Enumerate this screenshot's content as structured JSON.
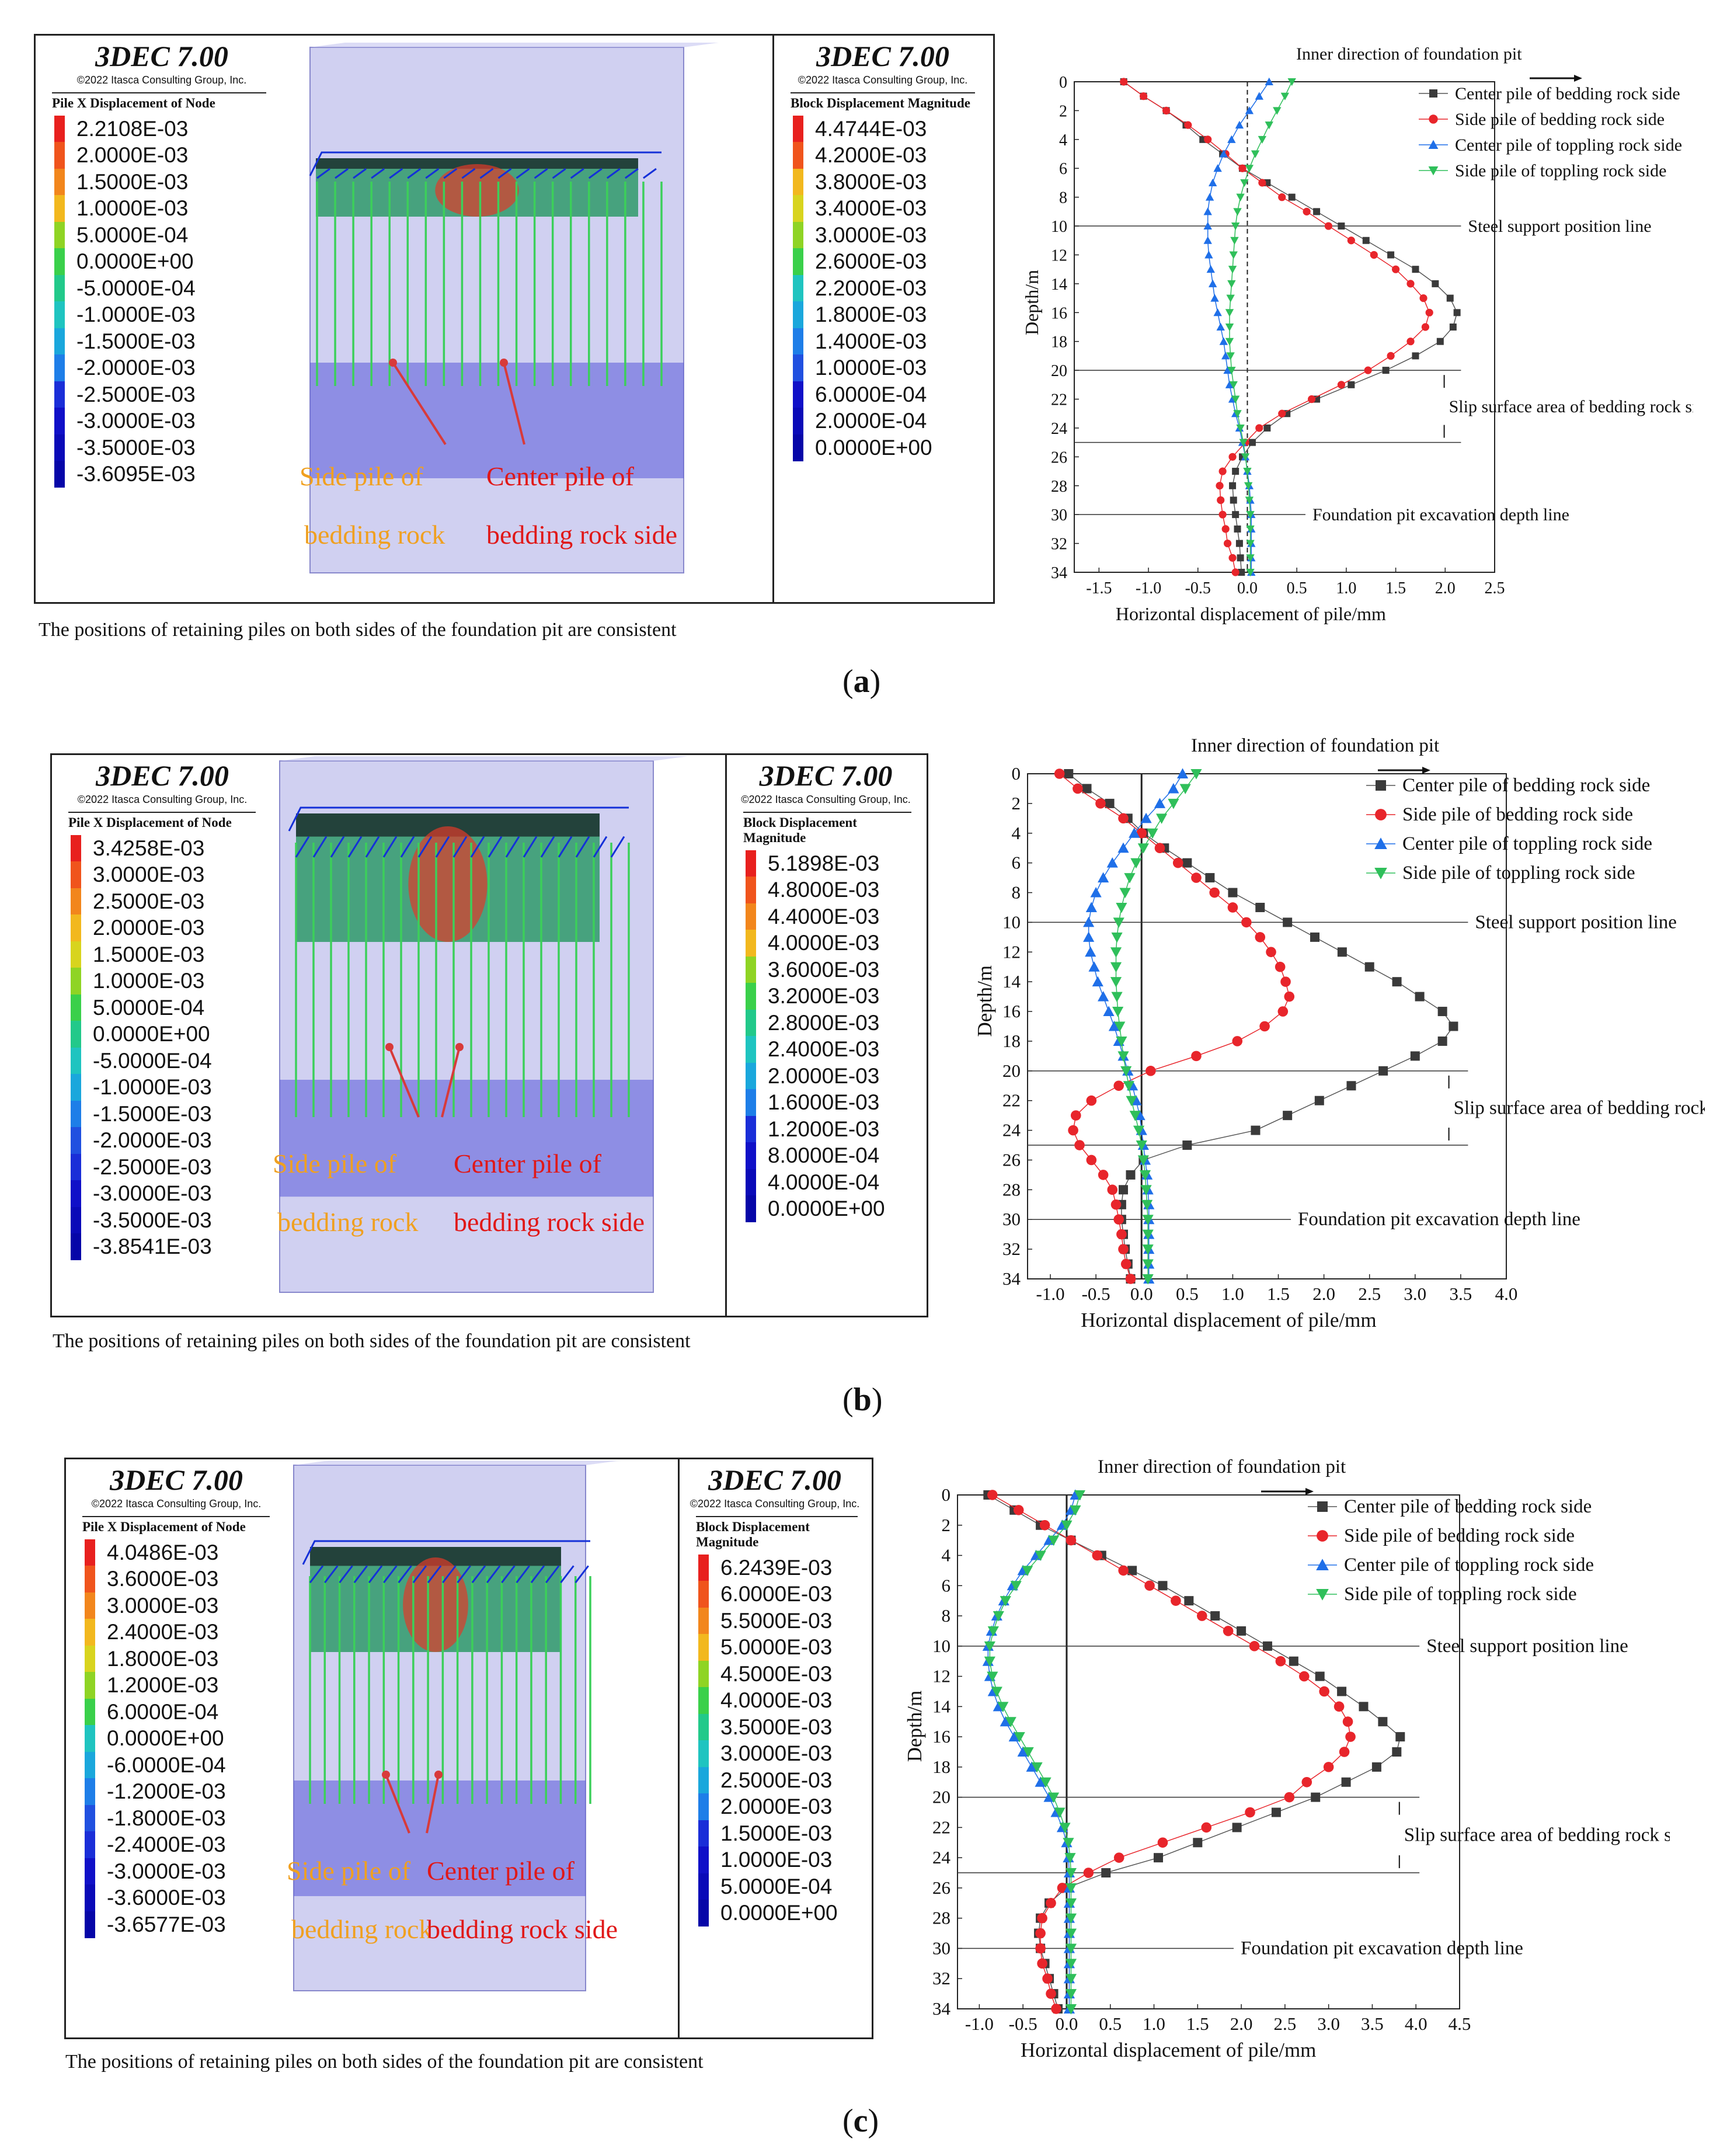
{
  "caption_common": "The positions of retaining piles on both sides of the foundation pit are consistent",
  "software": "3DEC 7.00",
  "copyright": "©2022 Itasca Consulting Group, Inc.",
  "panels": [
    {
      "label_open": "(",
      "label_letter": "a",
      "label_close": ")",
      "pile_legend_title": "Pile X Displacement of Node",
      "pile_legend": [
        "2.2108E-03",
        "2.0000E-03",
        "1.5000E-03",
        "1.0000E-03",
        "5.0000E-04",
        "0.0000E+00",
        "-5.0000E-04",
        "-1.0000E-03",
        "-1.5000E-03",
        "-2.0000E-03",
        "-2.5000E-03",
        "-3.0000E-03",
        "-3.5000E-03",
        "-3.6095E-03"
      ],
      "block_legend_title": "Block  Displacement Magnitude",
      "block_legend": [
        "4.4744E-03",
        "4.2000E-03",
        "3.8000E-03",
        "3.4000E-03",
        "3.0000E-03",
        "2.6000E-03",
        "2.2000E-03",
        "1.8000E-03",
        "1.4000E-03",
        "1.0000E-03",
        "6.0000E-04",
        "2.0000E-04",
        "0.0000E+00"
      ],
      "side_pile_label_1": "Side pile of",
      "side_pile_label_2": "bedding rock",
      "center_pile_label_1": "Center pile of",
      "center_pile_label_2": "bedding rock side"
    },
    {
      "label_open": "(",
      "label_letter": "b",
      "label_close": ")",
      "pile_legend_title": "Pile X Displacement of Node",
      "pile_legend": [
        "3.4258E-03",
        "3.0000E-03",
        "2.5000E-03",
        "2.0000E-03",
        "1.5000E-03",
        "1.0000E-03",
        "5.0000E-04",
        "0.0000E+00",
        "-5.0000E-04",
        "-1.0000E-03",
        "-1.5000E-03",
        "-2.0000E-03",
        "-2.5000E-03",
        "-3.0000E-03",
        "-3.5000E-03",
        "-3.8541E-03"
      ],
      "block_legend_title": "Block  Displacement Magnitude",
      "block_legend": [
        "5.1898E-03",
        "4.8000E-03",
        "4.4000E-03",
        "4.0000E-03",
        "3.6000E-03",
        "3.2000E-03",
        "2.8000E-03",
        "2.4000E-03",
        "2.0000E-03",
        "1.6000E-03",
        "1.2000E-03",
        "8.0000E-04",
        "4.0000E-04",
        "0.0000E+00"
      ],
      "side_pile_label_1": "Side pile of",
      "side_pile_label_2": "bedding rock",
      "center_pile_label_1": "Center pile of",
      "center_pile_label_2": "bedding rock side"
    },
    {
      "label_open": "(",
      "label_letter": "c",
      "label_close": ")",
      "pile_legend_title": "Pile X Displacement of Node",
      "pile_legend": [
        "4.0486E-03",
        "3.6000E-03",
        "3.0000E-03",
        "2.4000E-03",
        "1.8000E-03",
        "1.2000E-03",
        "6.0000E-04",
        "0.0000E+00",
        "-6.0000E-04",
        "-1.2000E-03",
        "-1.8000E-03",
        "-2.4000E-03",
        "-3.0000E-03",
        "-3.6000E-03",
        "-3.6577E-03"
      ],
      "block_legend_title": "Block  Displacement Magnitude",
      "block_legend": [
        "6.2439E-03",
        "6.0000E-03",
        "5.5000E-03",
        "5.0000E-03",
        "4.5000E-03",
        "4.0000E-03",
        "3.5000E-03",
        "3.0000E-03",
        "2.5000E-03",
        "2.0000E-03",
        "1.5000E-03",
        "1.0000E-03",
        "5.0000E-04",
        "0.0000E+00"
      ],
      "side_pile_label_1": "Side pile of",
      "side_pile_label_2": "bedding rock",
      "center_pile_label_1": "Center pile of",
      "center_pile_label_2": "bedding rock side"
    }
  ],
  "colors": {
    "center_bedding": "#3a3a3a",
    "side_bedding": "#e8252b",
    "center_toppling": "#1f6fe8",
    "side_toppling": "#2fbf5a",
    "arrow_red": "#d83a3a",
    "label_orange": "#f0a020",
    "label_red": "#e01818"
  },
  "chart_data": [
    {
      "type": "line",
      "title": "Inner direction of foundation pit",
      "xlabel": "Horizontal displacement of pile/mm",
      "ylabel": "Depth/m",
      "xlim": [
        -1.75,
        2.5
      ],
      "ylim": [
        0,
        34
      ],
      "xticks": [
        "-1.5",
        "-1.0",
        "-0.5",
        "0.0",
        "0.5",
        "1.0",
        "1.5",
        "2.0",
        "2.5"
      ],
      "xtick_values": [
        -1.5,
        -1.0,
        -0.5,
        0.0,
        0.5,
        1.0,
        1.5,
        2.0,
        2.5
      ],
      "yticks": [
        "0",
        "2",
        "4",
        "6",
        "8",
        "10",
        "12",
        "14",
        "16",
        "18",
        "20",
        "22",
        "24",
        "26",
        "28",
        "30",
        "32",
        "34"
      ],
      "zero_line_dashed": true,
      "reference_lines": [
        {
          "depth": 10,
          "label": "Steel support position line"
        },
        {
          "depth": 20,
          "label": ""
        },
        {
          "depth": 25,
          "label": ""
        },
        {
          "depth": 30,
          "label": "Foundation pit excavation depth line"
        }
      ],
      "slip_label": "Slip surface area of bedding rock side",
      "slip_range": [
        20,
        25
      ],
      "depths": [
        0,
        1,
        2,
        3,
        4,
        5,
        6,
        7,
        8,
        9,
        10,
        11,
        12,
        13,
        14,
        15,
        16,
        17,
        18,
        19,
        20,
        21,
        22,
        23,
        24,
        25,
        26,
        27,
        28,
        29,
        30,
        31,
        32,
        33,
        34
      ],
      "series": [
        {
          "name": "Center pile of bedding rock side",
          "marker": "square",
          "values": [
            -1.25,
            -1.05,
            -0.82,
            -0.62,
            -0.45,
            -0.25,
            -0.05,
            0.2,
            0.45,
            0.7,
            0.95,
            1.2,
            1.45,
            1.7,
            1.9,
            2.05,
            2.12,
            2.08,
            1.95,
            1.7,
            1.4,
            1.05,
            0.7,
            0.4,
            0.2,
            0.05,
            -0.05,
            -0.12,
            -0.15,
            -0.14,
            -0.12,
            -0.1,
            -0.08,
            -0.07,
            -0.06
          ]
        },
        {
          "name": "Side pile of bedding rock side",
          "marker": "circle",
          "values": [
            -1.25,
            -1.05,
            -0.82,
            -0.6,
            -0.4,
            -0.22,
            -0.05,
            0.15,
            0.35,
            0.6,
            0.82,
            1.05,
            1.28,
            1.5,
            1.65,
            1.78,
            1.84,
            1.8,
            1.65,
            1.45,
            1.22,
            0.95,
            0.65,
            0.35,
            0.12,
            -0.02,
            -0.15,
            -0.25,
            -0.28,
            -0.27,
            -0.25,
            -0.22,
            -0.2,
            -0.15,
            -0.12
          ]
        },
        {
          "name": "Center pile of toppling rock side",
          "marker": "triangle-up",
          "values": [
            0.22,
            0.12,
            0.02,
            -0.08,
            -0.16,
            -0.24,
            -0.3,
            -0.35,
            -0.38,
            -0.4,
            -0.4,
            -0.4,
            -0.39,
            -0.37,
            -0.35,
            -0.33,
            -0.3,
            -0.27,
            -0.24,
            -0.22,
            -0.2,
            -0.18,
            -0.15,
            -0.12,
            -0.08,
            -0.05,
            -0.02,
            0.0,
            0.02,
            0.03,
            0.04,
            0.04,
            0.04,
            0.04,
            0.04
          ]
        },
        {
          "name": "Side pile of toppling rock side",
          "marker": "triangle-down",
          "values": [
            0.45,
            0.38,
            0.3,
            0.22,
            0.15,
            0.08,
            0.02,
            -0.03,
            -0.07,
            -0.1,
            -0.12,
            -0.13,
            -0.14,
            -0.15,
            -0.16,
            -0.17,
            -0.18,
            -0.18,
            -0.18,
            -0.17,
            -0.16,
            -0.14,
            -0.12,
            -0.1,
            -0.07,
            -0.04,
            -0.02,
            0.0,
            0.01,
            0.02,
            0.03,
            0.03,
            0.03,
            0.03,
            0.03
          ]
        }
      ]
    },
    {
      "type": "line",
      "title": "Inner direction of foundation pit",
      "xlabel": "Horizontal displacement of pile/mm",
      "ylabel": "Depth/m",
      "xlim": [
        -1.25,
        4.0
      ],
      "ylim": [
        0,
        34
      ],
      "xticks": [
        "-1.0",
        "-0.5",
        "0.0",
        "0.5",
        "1.0",
        "1.5",
        "2.0",
        "2.5",
        "3.0",
        "3.5",
        "4.0"
      ],
      "xtick_values": [
        -1.0,
        -0.5,
        0.0,
        0.5,
        1.0,
        1.5,
        2.0,
        2.5,
        3.0,
        3.5,
        4.0
      ],
      "yticks": [
        "0",
        "2",
        "4",
        "6",
        "8",
        "10",
        "12",
        "14",
        "16",
        "18",
        "20",
        "22",
        "24",
        "26",
        "28",
        "30",
        "32",
        "34"
      ],
      "zero_line_dashed": false,
      "reference_lines": [
        {
          "depth": 10,
          "label": "Steel support position line"
        },
        {
          "depth": 20,
          "label": ""
        },
        {
          "depth": 25,
          "label": ""
        },
        {
          "depth": 30,
          "label": "Foundation pit excavation depth line"
        }
      ],
      "slip_label": "Slip surface area of bedding rock side",
      "slip_range": [
        20,
        25
      ],
      "depths": [
        0,
        1,
        2,
        3,
        4,
        5,
        6,
        7,
        8,
        9,
        10,
        11,
        12,
        13,
        14,
        15,
        16,
        17,
        18,
        19,
        20,
        21,
        22,
        23,
        24,
        25,
        26,
        27,
        28,
        29,
        30,
        31,
        32,
        33,
        34
      ],
      "series": [
        {
          "name": "Center pile of bedding rock side",
          "marker": "square",
          "values": [
            -0.8,
            -0.6,
            -0.35,
            -0.15,
            0.02,
            0.25,
            0.5,
            0.75,
            1.0,
            1.3,
            1.6,
            1.9,
            2.2,
            2.5,
            2.8,
            3.05,
            3.3,
            3.42,
            3.3,
            3.0,
            2.65,
            2.3,
            1.95,
            1.6,
            1.25,
            0.5,
            0.02,
            -0.12,
            -0.2,
            -0.22,
            -0.22,
            -0.2,
            -0.18,
            -0.15,
            -0.12
          ]
        },
        {
          "name": "Side pile of bedding rock side",
          "marker": "circle",
          "values": [
            -0.9,
            -0.7,
            -0.45,
            -0.2,
            0.0,
            0.2,
            0.4,
            0.6,
            0.8,
            1.0,
            1.15,
            1.3,
            1.42,
            1.52,
            1.58,
            1.62,
            1.55,
            1.35,
            1.05,
            0.6,
            0.1,
            -0.25,
            -0.55,
            -0.72,
            -0.75,
            -0.68,
            -0.55,
            -0.42,
            -0.32,
            -0.28,
            -0.25,
            -0.22,
            -0.2,
            -0.17,
            -0.12
          ]
        },
        {
          "name": "Center pile of toppling rock side",
          "marker": "triangle-up",
          "values": [
            0.45,
            0.35,
            0.2,
            0.05,
            -0.08,
            -0.2,
            -0.32,
            -0.42,
            -0.5,
            -0.55,
            -0.58,
            -0.58,
            -0.56,
            -0.52,
            -0.48,
            -0.42,
            -0.36,
            -0.3,
            -0.25,
            -0.2,
            -0.15,
            -0.1,
            -0.06,
            -0.02,
            0.0,
            0.02,
            0.04,
            0.06,
            0.07,
            0.08,
            0.08,
            0.08,
            0.08,
            0.08,
            0.08
          ]
        },
        {
          "name": "Side pile of toppling rock side",
          "marker": "triangle-down",
          "values": [
            0.6,
            0.48,
            0.35,
            0.22,
            0.12,
            0.02,
            -0.06,
            -0.13,
            -0.18,
            -0.22,
            -0.25,
            -0.27,
            -0.28,
            -0.28,
            -0.28,
            -0.27,
            -0.26,
            -0.24,
            -0.22,
            -0.2,
            -0.17,
            -0.14,
            -0.11,
            -0.07,
            -0.03,
            0.0,
            0.02,
            0.04,
            0.05,
            0.06,
            0.07,
            0.07,
            0.07,
            0.07,
            0.07
          ]
        }
      ]
    },
    {
      "type": "line",
      "title": "Inner direction of foundation pit",
      "xlabel": "Horizontal displacement of pile/mm",
      "ylabel": "Depth/m",
      "xlim": [
        -1.25,
        4.5
      ],
      "ylim": [
        0,
        34
      ],
      "xticks": [
        "-1.0",
        "-0.5",
        "0.0",
        "0.5",
        "1.0",
        "1.5",
        "2.0",
        "2.5",
        "3.0",
        "3.5",
        "4.0",
        "4.5"
      ],
      "xtick_values": [
        -1.0,
        -0.5,
        0.0,
        0.5,
        1.0,
        1.5,
        2.0,
        2.5,
        3.0,
        3.5,
        4.0,
        4.5
      ],
      "yticks": [
        "0",
        "2",
        "4",
        "6",
        "8",
        "10",
        "12",
        "14",
        "16",
        "18",
        "20",
        "22",
        "24",
        "26",
        "28",
        "30",
        "32",
        "34"
      ],
      "zero_line_dashed": false,
      "reference_lines": [
        {
          "depth": 10,
          "label": "Steel support position line"
        },
        {
          "depth": 20,
          "label": ""
        },
        {
          "depth": 25,
          "label": ""
        },
        {
          "depth": 30,
          "label": "Foundation pit excavation depth line"
        }
      ],
      "slip_label": "Slip surface area of bedding rock side",
      "slip_range": [
        20,
        25
      ],
      "depths": [
        0,
        1,
        2,
        3,
        4,
        5,
        6,
        7,
        8,
        9,
        10,
        11,
        12,
        13,
        14,
        15,
        16,
        17,
        18,
        19,
        20,
        21,
        22,
        23,
        24,
        25,
        26,
        27,
        28,
        29,
        30,
        31,
        32,
        33,
        34
      ],
      "series": [
        {
          "name": "Center pile of bedding rock side",
          "marker": "square",
          "values": [
            -0.9,
            -0.6,
            -0.3,
            0.05,
            0.4,
            0.75,
            1.1,
            1.4,
            1.7,
            2.0,
            2.3,
            2.6,
            2.9,
            3.15,
            3.4,
            3.62,
            3.82,
            3.78,
            3.55,
            3.2,
            2.85,
            2.4,
            1.95,
            1.5,
            1.05,
            0.45,
            0.0,
            -0.2,
            -0.3,
            -0.32,
            -0.3,
            -0.25,
            -0.2,
            -0.15,
            -0.1
          ]
        },
        {
          "name": "Side pile of bedding rock side",
          "marker": "circle",
          "values": [
            -0.85,
            -0.55,
            -0.25,
            0.05,
            0.35,
            0.65,
            0.95,
            1.25,
            1.55,
            1.85,
            2.15,
            2.45,
            2.72,
            2.95,
            3.12,
            3.22,
            3.25,
            3.18,
            3.0,
            2.75,
            2.55,
            2.1,
            1.6,
            1.1,
            0.6,
            0.25,
            -0.05,
            -0.18,
            -0.28,
            -0.3,
            -0.3,
            -0.28,
            -0.22,
            -0.18,
            -0.12
          ]
        },
        {
          "name": "Center pile of toppling rock side",
          "marker": "triangle-up",
          "values": [
            0.1,
            0.05,
            -0.05,
            -0.2,
            -0.35,
            -0.5,
            -0.62,
            -0.72,
            -0.8,
            -0.86,
            -0.9,
            -0.9,
            -0.88,
            -0.84,
            -0.78,
            -0.7,
            -0.6,
            -0.5,
            -0.4,
            -0.3,
            -0.2,
            -0.12,
            -0.05,
            0.0,
            0.02,
            0.03,
            0.03,
            0.03,
            0.03,
            0.03,
            0.03,
            0.03,
            0.03,
            0.03,
            0.03
          ]
        },
        {
          "name": "Side pile of toppling rock side",
          "marker": "triangle-down",
          "values": [
            0.15,
            0.1,
            0.0,
            -0.15,
            -0.3,
            -0.45,
            -0.58,
            -0.7,
            -0.78,
            -0.84,
            -0.88,
            -0.88,
            -0.85,
            -0.8,
            -0.73,
            -0.64,
            -0.54,
            -0.44,
            -0.34,
            -0.24,
            -0.15,
            -0.08,
            -0.02,
            0.02,
            0.04,
            0.05,
            0.05,
            0.05,
            0.05,
            0.05,
            0.05,
            0.05,
            0.05,
            0.05,
            0.05
          ]
        }
      ]
    }
  ]
}
